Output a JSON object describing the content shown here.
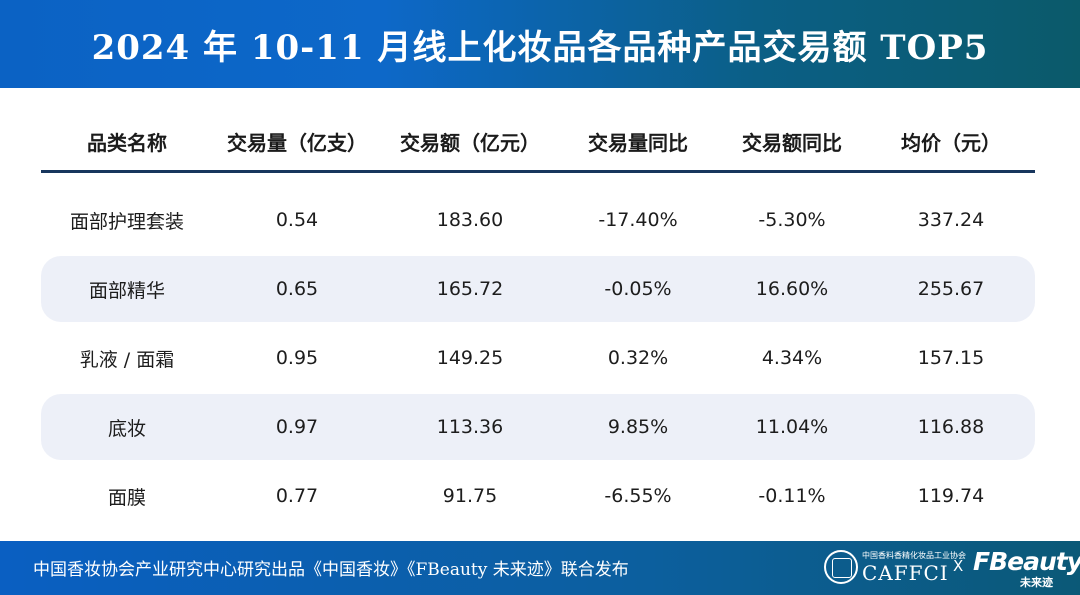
{
  "header": {
    "title": "2024 年 10-11 月线上化妆品各品种产品交易额 TOP5"
  },
  "chart_data": {
    "type": "table",
    "title": "2024 年 10-11 月线上化妆品各品种产品交易额 TOP5",
    "columns": [
      "品类名称",
      "交易量（亿支）",
      "交易额（亿元）",
      "交易量同比",
      "交易额同比",
      "均价（元）"
    ],
    "rows": [
      [
        "面部护理套装",
        "0.54",
        "183.60",
        "-17.40%",
        "-5.30%",
        "337.24"
      ],
      [
        "面部精华",
        "0.65",
        "165.72",
        "-0.05%",
        "16.60%",
        "255.67"
      ],
      [
        "乳液 / 面霜",
        "0.95",
        "149.25",
        "0.32%",
        "4.34%",
        "157.15"
      ],
      [
        "底妆",
        "0.97",
        "113.36",
        "9.85%",
        "11.04%",
        "116.88"
      ],
      [
        "面膜",
        "0.77",
        "91.75",
        "-6.55%",
        "-0.11%",
        "119.74"
      ]
    ]
  },
  "footer": {
    "text": "中国香妆协会产业研究中心研究出品《中国香妆》《FBeauty 未来迹》联合发布",
    "caffci_small": "中国香料香精化妆品工业协会",
    "caffci": "CAFFCI",
    "cross": "X",
    "fbeauty": "FBeauty",
    "fbeauty_sub": "未来迹"
  },
  "colors": {
    "header_start": "#0b62c4",
    "header_end": "#0b5a6a",
    "row_alt": "#edf0f8",
    "rule": "#17365d"
  }
}
